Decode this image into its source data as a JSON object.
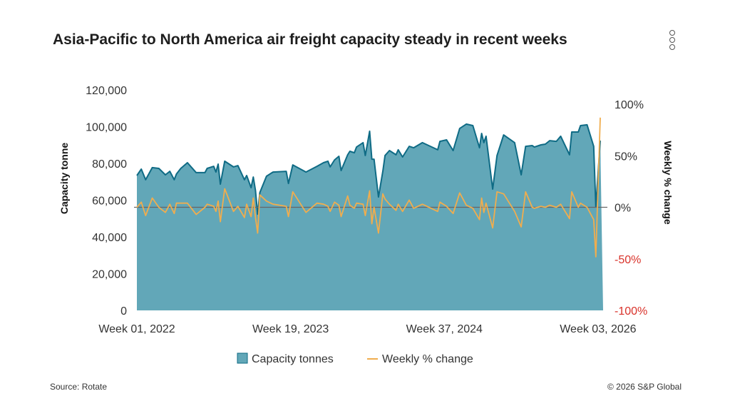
{
  "title": "Asia-Pacific to North America air freight capacity steady in recent weeks",
  "source": "Source: Rotate",
  "copyright": "© 2026 S&P Global",
  "colors": {
    "area": "#62a7b8",
    "area_line": "#0f6b85",
    "pct_line": "#f0ad4e",
    "negative_tick": "#d9322a",
    "zero_line": "#666666"
  },
  "chart_data": {
    "type": "area",
    "title": "Asia-Pacific to North America air freight capacity steady in recent weeks",
    "x_unit": "week index from Week 01, 2022",
    "x_ticks": [
      {
        "week": 0,
        "label": "Week 01, 2022"
      },
      {
        "week": 70,
        "label": "Week 19, 2023"
      },
      {
        "week": 140,
        "label": "Week 37, 2024"
      },
      {
        "week": 210,
        "label": "Week 03, 2026"
      }
    ],
    "xlim": [
      0,
      211
    ],
    "ylabel_left": "Capacity tonne",
    "ylabel_right": "Weekly % change",
    "ylim_left": [
      0,
      120000
    ],
    "ylim_right": [
      -100,
      100
    ],
    "left_ticks": [
      "0",
      "20,000",
      "40,000",
      "60,000",
      "80,000",
      "100,000",
      "120,000"
    ],
    "right_ticks": [
      {
        "value": -100,
        "label": "-100%"
      },
      {
        "value": -50,
        "label": "-50%"
      },
      {
        "value": 0,
        "label": "0%"
      },
      {
        "value": 50,
        "label": "50%"
      },
      {
        "value": 100,
        "label": "100%"
      }
    ],
    "legend": {
      "placement": "bottom",
      "items": [
        "Capacity tonnes",
        "Weekly % change"
      ]
    },
    "series": [
      {
        "name": "Capacity tonnes",
        "type": "area",
        "x": [
          0,
          2,
          4,
          7,
          10,
          13,
          15,
          17,
          18,
          20,
          23,
          27,
          31,
          32,
          35,
          36,
          37,
          38,
          40,
          44,
          46,
          49,
          50,
          52,
          53,
          54,
          55,
          56,
          59,
          62,
          68,
          69,
          71,
          77,
          82,
          85,
          87,
          88,
          90,
          92,
          93,
          96,
          97,
          99,
          100,
          103,
          104,
          106,
          107,
          108,
          110,
          112,
          113,
          115,
          118,
          119,
          121,
          124,
          126,
          130,
          137,
          138,
          141,
          144,
          147,
          150,
          153,
          156,
          157,
          158,
          159,
          162,
          164,
          167,
          172,
          175,
          177,
          180,
          181,
          184,
          186,
          188,
          191,
          193,
          197,
          198,
          201,
          202,
          205,
          208,
          209,
          211
        ],
        "values": [
          73400,
          76900,
          71100,
          77700,
          77300,
          73800,
          75700,
          71100,
          74200,
          77300,
          80400,
          75000,
          75000,
          77300,
          78400,
          75300,
          79600,
          68700,
          81200,
          78100,
          78800,
          71100,
          73400,
          66800,
          72600,
          65200,
          52400,
          64100,
          73000,
          75300,
          75700,
          69100,
          79200,
          75300,
          78400,
          80400,
          81200,
          78100,
          81900,
          83900,
          76100,
          84700,
          86600,
          85800,
          88900,
          91300,
          84300,
          97500,
          82300,
          82300,
          61700,
          75700,
          84300,
          87000,
          84700,
          87400,
          83500,
          89300,
          88500,
          91300,
          87400,
          92000,
          92800,
          87000,
          99000,
          101400,
          100600,
          88500,
          96300,
          91300,
          94800,
          66000,
          84300,
          95500,
          91300,
          73800,
          89300,
          89700,
          88900,
          90100,
          90500,
          92400,
          92000,
          94800,
          84700,
          97100,
          97100,
          100600,
          101000,
          89300,
          56300,
          92400
        ]
      },
      {
        "name": "Weekly % change",
        "type": "line",
        "x": [
          0,
          2,
          4,
          7,
          10,
          13,
          15,
          17,
          18,
          20,
          23,
          27,
          31,
          32,
          35,
          36,
          37,
          38,
          40,
          44,
          46,
          49,
          50,
          52,
          53,
          54,
          55,
          56,
          59,
          62,
          68,
          69,
          71,
          77,
          82,
          85,
          87,
          88,
          90,
          92,
          93,
          96,
          97,
          99,
          100,
          103,
          104,
          106,
          107,
          108,
          110,
          112,
          113,
          115,
          118,
          119,
          121,
          124,
          126,
          130,
          137,
          138,
          141,
          144,
          147,
          150,
          153,
          156,
          157,
          158,
          159,
          162,
          164,
          167,
          172,
          175,
          177,
          180,
          181,
          184,
          186,
          188,
          191,
          193,
          197,
          198,
          201,
          202,
          205,
          208,
          209,
          211
        ],
        "values": [
          0,
          5,
          -8,
          9,
          0,
          -5,
          3,
          -6,
          4,
          4,
          4,
          -7,
          0,
          3,
          1,
          -4,
          6,
          -14,
          18,
          -4,
          1,
          -10,
          3,
          -9,
          9,
          -10,
          -25,
          12,
          6,
          3,
          1,
          -9,
          15,
          -5,
          4,
          3,
          1,
          -4,
          5,
          2,
          -9,
          11,
          2,
          -1,
          4,
          3,
          -8,
          16,
          -16,
          0,
          -25,
          13,
          8,
          3,
          -3,
          3,
          -4,
          7,
          -1,
          3,
          -4,
          5,
          1,
          -6,
          14,
          2,
          -1,
          -12,
          9,
          -5,
          4,
          -20,
          15,
          13,
          -4,
          -19,
          15,
          0,
          -1,
          1,
          0,
          2,
          0,
          3,
          -11,
          15,
          0,
          4,
          0,
          -12,
          -48,
          87
        ]
      }
    ]
  }
}
